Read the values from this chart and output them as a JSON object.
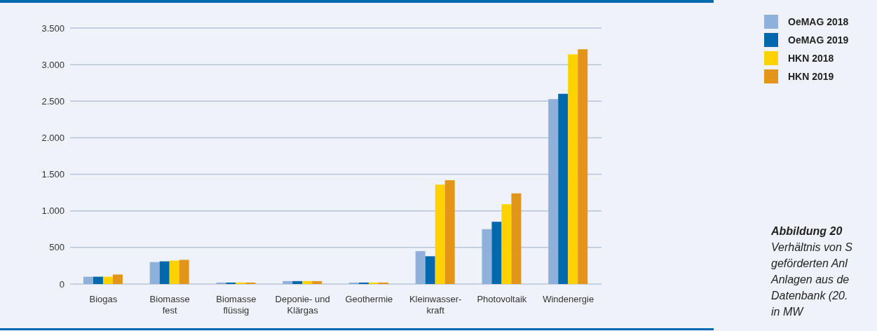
{
  "chart_data": {
    "type": "bar",
    "title": "Abbildung 20",
    "annotations": [
      "Verhältnis von S",
      "geförderten Anl",
      "Anlagen aus de",
      "Datenbank (20.",
      "in MW"
    ],
    "categories": [
      "Biogas",
      "Biomasse\nfest",
      "Biomasse\nflüssig",
      "Deponie- und\nKlärgas",
      "Geothermie",
      "Kleinwasser-\nkraft",
      "Photovoltaik",
      "Windenergie"
    ],
    "series": [
      {
        "name": "OeMAG 2018",
        "color": "#8fb0da",
        "values": [
          100,
          300,
          20,
          40,
          20,
          450,
          750,
          2530
        ]
      },
      {
        "name": "OeMAG 2019",
        "color": "#0069ad",
        "values": [
          100,
          310,
          20,
          40,
          20,
          380,
          850,
          2600
        ]
      },
      {
        "name": "HKN 2018",
        "color": "#fdd200",
        "values": [
          100,
          320,
          20,
          40,
          20,
          1360,
          1090,
          3140
        ]
      },
      {
        "name": "HKN 2019",
        "color": "#e29518",
        "values": [
          130,
          330,
          20,
          40,
          20,
          1420,
          1240,
          3210
        ]
      }
    ],
    "ylim": [
      0,
      3500
    ],
    "yticks": [
      {
        "value": 0,
        "label": "0"
      },
      {
        "value": 500,
        "label": "500"
      },
      {
        "value": 1000,
        "label": "1.000"
      },
      {
        "value": 1500,
        "label": "1.500"
      },
      {
        "value": 2000,
        "label": "2.000"
      },
      {
        "value": 2500,
        "label": "2.500"
      },
      {
        "value": 3000,
        "label": "3.000"
      },
      {
        "value": 3500,
        "label": "3.500"
      }
    ],
    "grid": "y",
    "legend": "right"
  }
}
